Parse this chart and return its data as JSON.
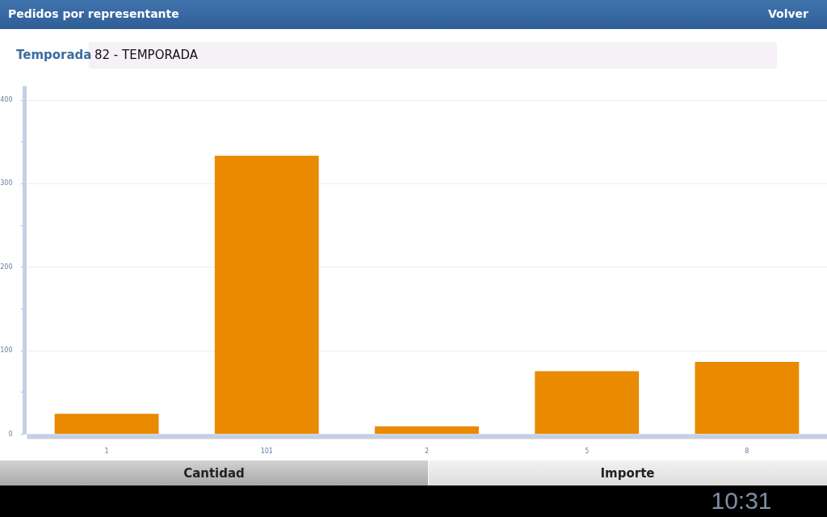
{
  "chart_data": {
    "type": "bar",
    "title": "Pedidos por representante",
    "categories": [
      "1",
      "101",
      "2",
      "5",
      "8"
    ],
    "values": [
      24,
      333,
      9,
      75,
      86
    ],
    "color": "#ea8a00",
    "ylim": [
      0,
      417
    ],
    "yticks": [
      0,
      {
        "value": 50,
        "label": null
      },
      100,
      {
        "value": 150,
        "label": null
      },
      200,
      {
        "value": 250,
        "label": null
      },
      300,
      {
        "value": 350,
        "label": null
      },
      400
    ],
    "grid": "y",
    "annotations": [
      "Volver",
      "Temporada",
      "82 - TEMPORADA",
      "Cantidad",
      "Importe",
      "10:31"
    ]
  }
}
